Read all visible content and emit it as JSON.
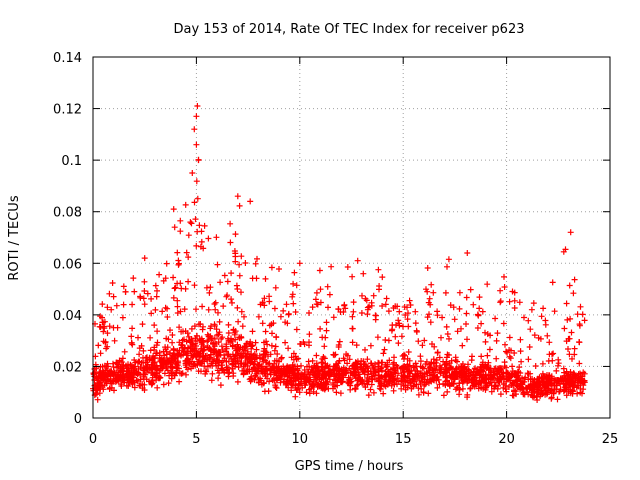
{
  "chart_data": {
    "type": "scatter",
    "title": "Day 153 of 2014, Rate Of TEC Index for receiver p623",
    "xlabel": "GPS time / hours",
    "ylabel": "ROTI / TECUs",
    "xlim": [
      0,
      25
    ],
    "ylim": [
      0,
      0.14
    ],
    "x_ticks": [
      0,
      5,
      10,
      15,
      20,
      25
    ],
    "x_tick_labels": [
      "0",
      "5",
      "10",
      "15",
      "20",
      "25"
    ],
    "y_ticks": [
      0,
      0.02,
      0.04,
      0.06,
      0.08,
      0.1,
      0.12,
      0.14
    ],
    "y_tick_labels": [
      "0",
      "0.02",
      "0.04",
      "0.06",
      "0.08",
      "0.1",
      "0.12",
      "0.14"
    ],
    "grid": true,
    "marker": "+",
    "marker_color": "#ff0000",
    "data_range_hours": [
      0,
      23.8
    ],
    "envelope": [
      {
        "x": 0.0,
        "base": 0.014,
        "max": 0.04
      },
      {
        "x": 1.0,
        "base": 0.016,
        "max": 0.055
      },
      {
        "x": 2.5,
        "base": 0.018,
        "max": 0.06
      },
      {
        "x": 3.8,
        "base": 0.022,
        "max": 0.075
      },
      {
        "x": 4.5,
        "base": 0.024,
        "max": 0.09
      },
      {
        "x": 5.0,
        "base": 0.026,
        "max": 0.121
      },
      {
        "x": 5.5,
        "base": 0.025,
        "max": 0.07
      },
      {
        "x": 7.2,
        "base": 0.024,
        "max": 0.086
      },
      {
        "x": 8.0,
        "base": 0.02,
        "max": 0.06
      },
      {
        "x": 10.0,
        "base": 0.016,
        "max": 0.06
      },
      {
        "x": 13.0,
        "base": 0.017,
        "max": 0.061
      },
      {
        "x": 15.0,
        "base": 0.016,
        "max": 0.055
      },
      {
        "x": 16.5,
        "base": 0.017,
        "max": 0.06
      },
      {
        "x": 18.0,
        "base": 0.016,
        "max": 0.064
      },
      {
        "x": 20.0,
        "base": 0.015,
        "max": 0.059
      },
      {
        "x": 21.5,
        "base": 0.012,
        "max": 0.045
      },
      {
        "x": 23.0,
        "base": 0.014,
        "max": 0.072
      },
      {
        "x": 23.8,
        "base": 0.014,
        "max": 0.05
      }
    ],
    "notable_points": [
      {
        "x": 5.05,
        "y": 0.121
      },
      {
        "x": 5.0,
        "y": 0.117
      },
      {
        "x": 4.9,
        "y": 0.112
      },
      {
        "x": 5.0,
        "y": 0.106
      },
      {
        "x": 5.1,
        "y": 0.1
      },
      {
        "x": 4.8,
        "y": 0.095
      },
      {
        "x": 7.0,
        "y": 0.086
      },
      {
        "x": 7.6,
        "y": 0.084
      },
      {
        "x": 3.9,
        "y": 0.081
      },
      {
        "x": 23.1,
        "y": 0.072
      },
      {
        "x": 18.1,
        "y": 0.064
      },
      {
        "x": 2.5,
        "y": 0.062
      },
      {
        "x": 12.8,
        "y": 0.061
      },
      {
        "x": 10.0,
        "y": 0.06
      }
    ]
  }
}
